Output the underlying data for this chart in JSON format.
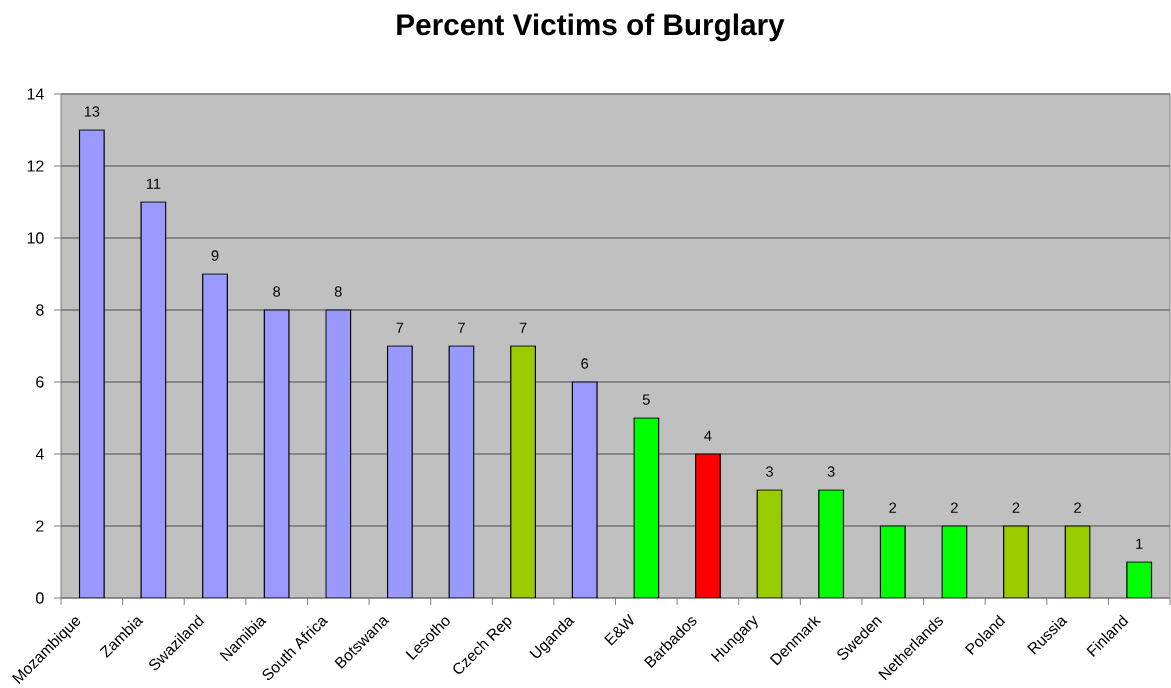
{
  "chart_data": {
    "type": "bar",
    "title": "Percent Victims of Burglary",
    "categories": [
      "Mozambique",
      "Zambia",
      "Swaziland",
      "Namibia",
      "South Africa",
      "Botswana",
      "Lesotho",
      "Czech Rep",
      "Uganda",
      "E&W",
      "Barbados",
      "Hungary",
      "Denmark",
      "Sweden",
      "Netherlands",
      "Poland",
      "Russia",
      "Finland"
    ],
    "values": [
      13,
      11,
      9,
      8,
      8,
      7,
      7,
      7,
      6,
      5,
      4,
      3,
      3,
      2,
      2,
      2,
      2,
      1
    ],
    "colors": [
      "#9999ff",
      "#9999ff",
      "#9999ff",
      "#9999ff",
      "#9999ff",
      "#9999ff",
      "#9999ff",
      "#99cc00",
      "#9999ff",
      "#00ff00",
      "#ff0000",
      "#99cc00",
      "#00ff00",
      "#00ff00",
      "#00ff00",
      "#99cc00",
      "#99cc00",
      "#00ff00"
    ],
    "ylim": [
      0,
      14
    ],
    "yticks": [
      0,
      2,
      4,
      6,
      8,
      10,
      12,
      14
    ],
    "grid": "y",
    "data_labels": true
  }
}
